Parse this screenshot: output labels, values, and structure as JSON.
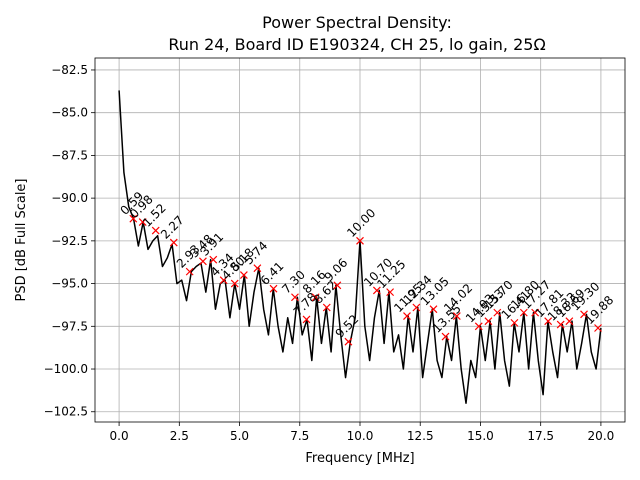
{
  "chart_data": {
    "type": "line",
    "title": [
      "Power Spectral Density:",
      "Run 24, Board ID E190324, CH 25, lo gain, 25Ω"
    ],
    "xlabel": "Frequency [MHz]",
    "ylabel": "PSD [dB Full Scale]",
    "xlim": [
      -1.0,
      21.0
    ],
    "ylim": [
      -103.1,
      -81.8
    ],
    "xticks": [
      {
        "value": 0,
        "label": "0.0"
      },
      2.5,
      {
        "value": 5,
        "label": "5.0"
      },
      7.5,
      {
        "value": 10,
        "label": "10.0"
      },
      12.5,
      {
        "value": 15,
        "label": "15.0"
      },
      17.5,
      {
        "value": 20,
        "label": "20.0"
      }
    ],
    "yticks": [
      {
        "value": -102.5,
        "label": "−102.5"
      },
      {
        "value": -100,
        "label": "−100.0"
      },
      {
        "value": -97.5,
        "label": "−97.5"
      },
      {
        "value": -95,
        "label": "−95.0"
      },
      {
        "value": -92.5,
        "label": "−92.5"
      },
      {
        "value": -90,
        "label": "−90.0"
      },
      {
        "value": -87.5,
        "label": "−87.5"
      },
      {
        "value": -85,
        "label": "−85.0"
      },
      {
        "value": -82.5,
        "label": "−82.5"
      }
    ],
    "grid": true,
    "x": [
      0.0,
      0.2,
      0.4,
      0.6,
      0.8,
      1.0,
      1.2,
      1.4,
      1.6,
      1.8,
      2.0,
      2.2,
      2.4,
      2.6,
      2.8,
      3.0,
      3.2,
      3.4,
      3.6,
      3.8,
      4.0,
      4.2,
      4.4,
      4.6,
      4.8,
      5.0,
      5.2,
      5.4,
      5.6,
      5.8,
      6.0,
      6.2,
      6.4,
      6.6,
      6.8,
      7.0,
      7.2,
      7.4,
      7.6,
      7.8,
      8.0,
      8.2,
      8.4,
      8.6,
      8.8,
      9.0,
      9.2,
      9.4,
      9.6,
      9.8,
      10.0,
      10.2,
      10.4,
      10.6,
      10.8,
      11.0,
      11.2,
      11.4,
      11.6,
      11.8,
      12.0,
      12.2,
      12.4,
      12.6,
      12.8,
      13.0,
      13.2,
      13.4,
      13.6,
      13.8,
      14.0,
      14.2,
      14.4,
      14.6,
      14.8,
      15.0,
      15.2,
      15.4,
      15.6,
      15.8,
      16.0,
      16.2,
      16.4,
      16.6,
      16.8,
      17.0,
      17.2,
      17.4,
      17.6,
      17.8,
      18.0,
      18.2,
      18.4,
      18.6,
      18.8,
      19.0,
      19.2,
      19.4,
      19.6,
      19.8,
      20.0
    ],
    "series": [
      {
        "color": "#000000",
        "values": [
          -83.7,
          -88.5,
          -90.5,
          -91.2,
          -92.8,
          -91.4,
          -93.0,
          -92.5,
          -92.2,
          -94.0,
          -93.5,
          -92.7,
          -95.0,
          -94.8,
          -96.0,
          -94.3,
          -94.0,
          -93.8,
          -95.5,
          -93.6,
          -96.5,
          -95.0,
          -94.8,
          -97.0,
          -95.0,
          -96.5,
          -94.5,
          -97.5,
          -95.5,
          -94.1,
          -96.5,
          -98.0,
          -95.3,
          -97.5,
          -99.0,
          -97.0,
          -98.5,
          -95.8,
          -98.0,
          -97.1,
          -99.5,
          -95.8,
          -98.5,
          -96.4,
          -99.0,
          -95.1,
          -98.0,
          -100.5,
          -98.4,
          -97.0,
          -92.5,
          -97.5,
          -99.5,
          -97.0,
          -95.4,
          -98.5,
          -95.5,
          -99.0,
          -98.0,
          -100.0,
          -96.9,
          -99.0,
          -96.4,
          -100.5,
          -98.5,
          -96.5,
          -99.5,
          -100.5,
          -98.1,
          -99.5,
          -96.9,
          -100.0,
          -102.0,
          -99.5,
          -100.5,
          -97.5,
          -99.5,
          -97.2,
          -100.0,
          -96.7,
          -99.5,
          -101.0,
          -97.3,
          -99.0,
          -96.7,
          -100.0,
          -96.7,
          -99.5,
          -101.5,
          -97.2,
          -99.0,
          -100.5,
          -97.4,
          -99.0,
          -97.2,
          -100.0,
          -98.5,
          -96.8,
          -99.0,
          -100.0,
          -97.6
        ]
      }
    ],
    "peaks": {
      "color": "#ff0000",
      "x": [
        0.59,
        0.98,
        1.52,
        2.27,
        2.93,
        3.48,
        3.91,
        4.34,
        4.8,
        5.18,
        5.74,
        6.41,
        7.3,
        7.78,
        8.16,
        8.62,
        9.06,
        9.52,
        10.0,
        10.7,
        11.25,
        11.95,
        12.34,
        13.05,
        13.55,
        14.02,
        14.93,
        15.33,
        15.7,
        16.41,
        16.8,
        17.27,
        17.81,
        18.33,
        18.69,
        19.3,
        19.88
      ],
      "y": [
        -91.2,
        -91.4,
        -91.9,
        -92.6,
        -94.3,
        -93.7,
        -93.6,
        -94.8,
        -95.0,
        -94.5,
        -94.1,
        -95.3,
        -95.8,
        -97.1,
        -95.8,
        -96.4,
        -95.1,
        -98.4,
        -92.5,
        -95.4,
        -95.5,
        -96.9,
        -96.4,
        -96.5,
        -98.1,
        -96.9,
        -97.5,
        -97.2,
        -96.7,
        -97.3,
        -96.7,
        -96.7,
        -97.2,
        -97.4,
        -97.2,
        -96.8,
        -97.6
      ],
      "labels": [
        "0.59",
        "0.98",
        "1.52",
        "2.27",
        "2.93",
        "3.48",
        "3.91",
        "4.34",
        "4.80",
        "5.18",
        "5.74",
        "6.41",
        "7.30",
        "7.78",
        "8.16",
        "8.62",
        "9.06",
        "9.52",
        "10.00",
        "10.70",
        "11.25",
        "11.95",
        "12.34",
        "13.05",
        "13.55",
        "14.02",
        "14.93",
        "15.33",
        "15.70",
        "16.41",
        "16.80",
        "17.27",
        "17.81",
        "18.33",
        "18.69",
        "19.30",
        "19.88"
      ]
    }
  }
}
